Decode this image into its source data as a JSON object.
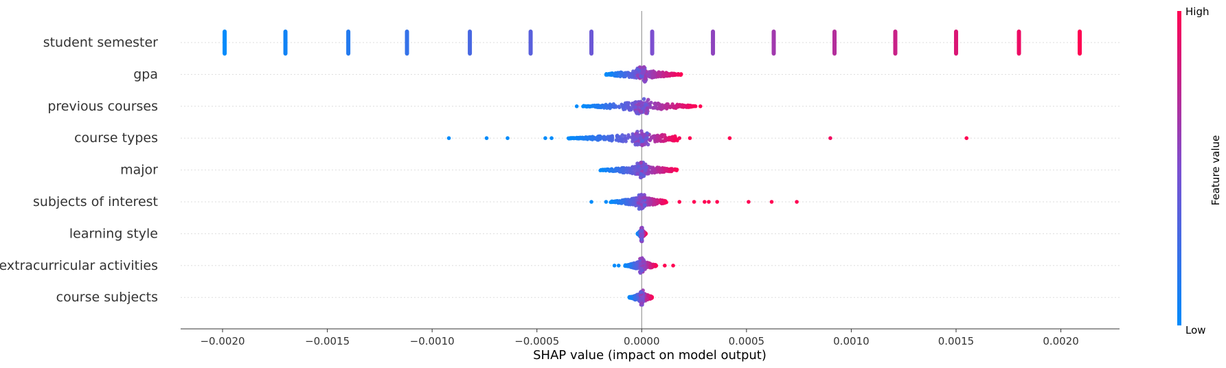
{
  "chart_data": {
    "type": "scatter",
    "subtype": "shap-beeswarm-summary",
    "xlabel": "SHAP value (impact on model output)",
    "xlim": [
      -0.0022,
      0.00228
    ],
    "x_ticks": [
      -0.002,
      -0.0015,
      -0.001,
      -0.0005,
      0.0,
      0.0005,
      0.001,
      0.0015,
      0.002
    ],
    "x_tick_labels": [
      "−0.0020",
      "−0.0015",
      "−0.0010",
      "−0.0005",
      "0.0000",
      "0.0005",
      "0.0010",
      "0.0015",
      "0.0020"
    ],
    "zero_line": 0.0,
    "grid": "horizontal dotted",
    "colorbar": {
      "label": "Feature value",
      "high": "High",
      "low": "Low",
      "low_color": "#008bfb",
      "mid_color": "#7c4fd0",
      "high_color": "#ff0052"
    },
    "features": [
      {
        "name": "student semester",
        "groups": [
          {
            "x": -0.00199,
            "v": 0.0
          },
          {
            "x": -0.0017,
            "v": 0.07
          },
          {
            "x": -0.0014,
            "v": 0.14
          },
          {
            "x": -0.00112,
            "v": 0.21
          },
          {
            "x": -0.00082,
            "v": 0.29
          },
          {
            "x": -0.00053,
            "v": 0.36
          },
          {
            "x": -0.00024,
            "v": 0.43
          },
          {
            "x": 5e-05,
            "v": 0.5
          },
          {
            "x": 0.00034,
            "v": 0.57
          },
          {
            "x": 0.00063,
            "v": 0.64
          },
          {
            "x": 0.00092,
            "v": 0.71
          },
          {
            "x": 0.00121,
            "v": 0.79
          },
          {
            "x": 0.0015,
            "v": 0.86
          },
          {
            "x": 0.0018,
            "v": 0.93
          },
          {
            "x": 0.00209,
            "v": 1.0
          }
        ]
      },
      {
        "name": "gpa",
        "range": [
          -0.00017,
          0.00019
        ],
        "outliers": []
      },
      {
        "name": "previous courses",
        "range": [
          -0.00028,
          0.00026
        ],
        "outliers": [
          {
            "x": -0.00031,
            "v": 0.0
          },
          {
            "x": 0.00028,
            "v": 1.0
          }
        ]
      },
      {
        "name": "course types",
        "range": [
          -0.00035,
          0.00017
        ],
        "outliers": [
          {
            "x": -0.00092,
            "v": 0.0
          },
          {
            "x": -0.00074,
            "v": 0.0
          },
          {
            "x": -0.00064,
            "v": 0.0
          },
          {
            "x": -0.00046,
            "v": 0.0
          },
          {
            "x": -0.00043,
            "v": 0.0
          },
          {
            "x": 0.00018,
            "v": 0.95
          },
          {
            "x": 0.00023,
            "v": 1.0
          },
          {
            "x": 0.00042,
            "v": 1.0
          },
          {
            "x": 0.0009,
            "v": 0.95
          },
          {
            "x": 0.00155,
            "v": 1.0
          }
        ]
      },
      {
        "name": "major",
        "range": [
          -0.0002,
          0.00017
        ],
        "outliers": []
      },
      {
        "name": "subjects of interest",
        "range": [
          -0.00015,
          0.00012
        ],
        "outliers": [
          {
            "x": -0.00024,
            "v": 0.0
          },
          {
            "x": -0.00017,
            "v": 0.0
          },
          {
            "x": 0.00018,
            "v": 1.0
          },
          {
            "x": 0.00025,
            "v": 1.0
          },
          {
            "x": 0.0003,
            "v": 1.0
          },
          {
            "x": 0.00032,
            "v": 1.0
          },
          {
            "x": 0.00036,
            "v": 1.0
          },
          {
            "x": 0.00051,
            "v": 1.0
          },
          {
            "x": 0.00062,
            "v": 1.0
          },
          {
            "x": 0.00074,
            "v": 1.0
          }
        ]
      },
      {
        "name": "learning style",
        "range": [
          -2e-05,
          2e-05
        ],
        "outliers": []
      },
      {
        "name": "extracurricular activities",
        "range": [
          -8e-05,
          7e-05
        ],
        "outliers": [
          {
            "x": -0.00013,
            "v": 0.0
          },
          {
            "x": -0.00011,
            "v": 0.0
          },
          {
            "x": 0.00011,
            "v": 1.0
          },
          {
            "x": 0.00015,
            "v": 1.0
          }
        ]
      },
      {
        "name": "course subjects",
        "range": [
          -6e-05,
          5e-05
        ],
        "outliers": []
      }
    ]
  }
}
